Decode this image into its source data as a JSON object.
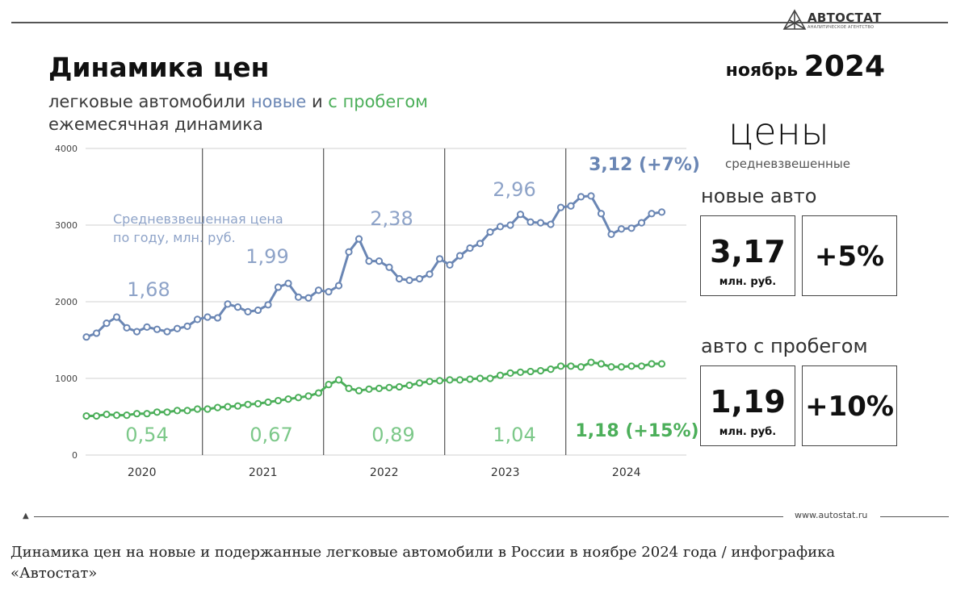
{
  "logo": {
    "brand": "АВТОСТАТ",
    "tagline": "АНАЛИТИЧЕСКОЕ АГЕНТСТВО"
  },
  "header": {
    "title": "Динамика цен",
    "subtitle_prefix": "легковые автомобили ",
    "subtitle_new": "новые",
    "subtitle_and": " и ",
    "subtitle_used": "с пробегом",
    "subtitle2": "ежемесячная динамика",
    "month": "ноябрь",
    "year": "2024"
  },
  "sidebar": {
    "prices_heading": "цены",
    "weighted": "средневзвешенные",
    "new_label": "новые авто",
    "new_price": "3,17",
    "new_unit": "млн. руб.",
    "new_change": "+5%",
    "used_label": "авто с пробегом",
    "used_price": "1,19",
    "used_unit": "млн. руб.",
    "used_change": "+10%"
  },
  "footer": {
    "site": "www.autostat.ru",
    "caption": "Динамика цен на новые и подержанные легковые автомобили в России в ноябре 2024 года / инфографика «Автостат»"
  },
  "colors": {
    "new": "#6a86b4",
    "used": "#4caf5a"
  },
  "chart_data": {
    "type": "line",
    "title": "Динамика цен",
    "xlabel": "",
    "ylabel": "",
    "ylim": [
      0,
      4000
    ],
    "yticks": [
      "0",
      "1000",
      "2000",
      "3000",
      "4000"
    ],
    "year_labels": [
      "2020",
      "2021",
      "2022",
      "2023",
      "2024"
    ],
    "series": [
      {
        "name": "новые",
        "values": [
          1540,
          1590,
          1720,
          1800,
          1660,
          1610,
          1670,
          1640,
          1610,
          1650,
          1680,
          1770,
          1800,
          1790,
          1970,
          1930,
          1870,
          1890,
          1960,
          2190,
          2240,
          2060,
          2050,
          2150,
          2130,
          2210,
          2650,
          2820,
          2530,
          2530,
          2450,
          2300,
          2280,
          2300,
          2360,
          2560,
          2480,
          2600,
          2700,
          2760,
          2910,
          2980,
          3000,
          3140,
          3040,
          3030,
          3010,
          3230,
          3250,
          3370,
          3380,
          3150,
          2880,
          2950,
          2960,
          3030,
          3150,
          3170
        ]
      },
      {
        "name": "с пробегом",
        "values": [
          510,
          510,
          530,
          520,
          520,
          540,
          540,
          560,
          560,
          580,
          580,
          600,
          600,
          620,
          630,
          640,
          660,
          670,
          690,
          710,
          730,
          750,
          770,
          810,
          920,
          980,
          870,
          840,
          860,
          870,
          880,
          890,
          910,
          940,
          960,
          970,
          980,
          980,
          990,
          1000,
          1000,
          1040,
          1070,
          1080,
          1090,
          1100,
          1120,
          1160,
          1160,
          1150,
          1210,
          1190,
          1150,
          1150,
          1160,
          1160,
          1190,
          1190
        ]
      }
    ],
    "annotations": {
      "avg_label_line1": "Средневзвешенная цена",
      "avg_label_line2": "по году, млн. руб.",
      "new_yearly": [
        "1,68",
        "1,99",
        "2,38",
        "2,96"
      ],
      "new_current": "3,12 (+7%)",
      "used_yearly": [
        "0,54",
        "0,67",
        "0,89",
        "1,04"
      ],
      "used_current": "1,18 (+15%)"
    }
  }
}
